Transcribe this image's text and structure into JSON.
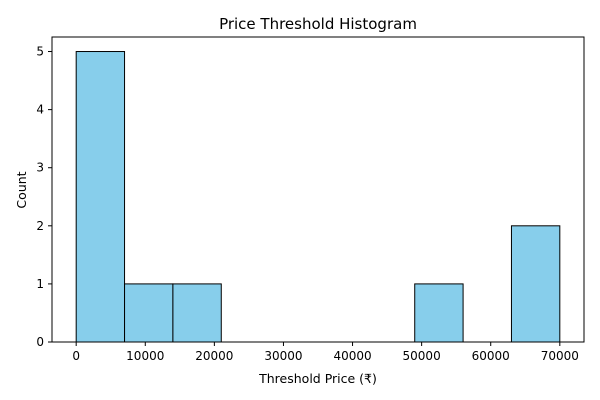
{
  "chart_data": {
    "type": "bar",
    "title": "Price Threshold Histogram",
    "xlabel": "Threshold Price (₹)",
    "ylabel": "Count",
    "xlim": [
      -3500,
      73500
    ],
    "ylim": [
      0,
      5.25
    ],
    "x_ticks": [
      0,
      10000,
      20000,
      30000,
      40000,
      50000,
      60000,
      70000
    ],
    "y_ticks": [
      0,
      1,
      2,
      3,
      4,
      5
    ],
    "bins": [
      {
        "start": 0,
        "end": 7000,
        "count": 5
      },
      {
        "start": 7000,
        "end": 14000,
        "count": 1
      },
      {
        "start": 14000,
        "end": 21000,
        "count": 1
      },
      {
        "start": 21000,
        "end": 28000,
        "count": 0
      },
      {
        "start": 28000,
        "end": 35000,
        "count": 0
      },
      {
        "start": 35000,
        "end": 42000,
        "count": 0
      },
      {
        "start": 42000,
        "end": 49000,
        "count": 0
      },
      {
        "start": 49000,
        "end": 56000,
        "count": 1
      },
      {
        "start": 56000,
        "end": 63000,
        "count": 0
      },
      {
        "start": 63000,
        "end": 70000,
        "count": 2
      }
    ],
    "bar_color": "#87ceeb",
    "edge_color": "#000000",
    "grid": false,
    "legend": "none"
  }
}
